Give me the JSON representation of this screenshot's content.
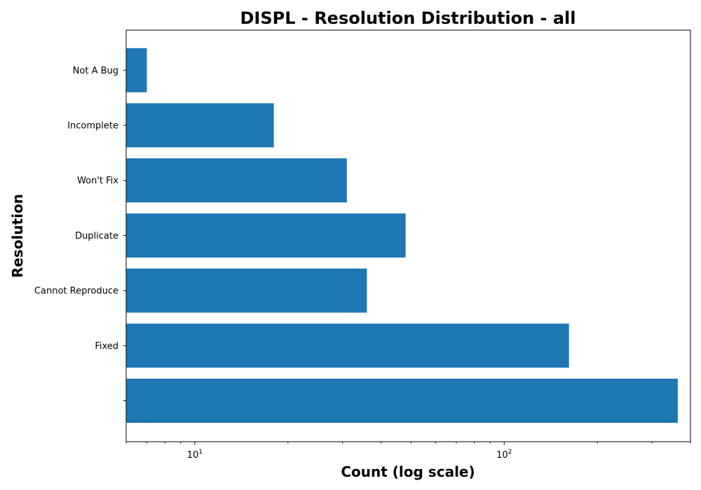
{
  "chart_data": {
    "type": "bar",
    "orientation": "horizontal",
    "title": "DISPL - Resolution Distribution - all",
    "xlabel": "Count (log scale)",
    "ylabel": "Resolution",
    "xscale": "log",
    "xlim": [
      6,
      400
    ],
    "categories": [
      "",
      "Fixed",
      "Cannot Reproduce",
      "Duplicate",
      "Won't Fix",
      "Incomplete",
      "Not A Bug"
    ],
    "values": [
      364,
      162,
      36,
      48,
      31,
      18,
      7
    ],
    "x_major_ticks": [
      {
        "base": "10",
        "exp": "1",
        "value": 10
      },
      {
        "base": "10",
        "exp": "2",
        "value": 100
      }
    ],
    "x_minor_ticks": [
      6,
      7,
      8,
      9,
      20,
      30,
      40,
      50,
      60,
      70,
      80,
      90,
      200,
      300,
      400
    ],
    "bar_color": "#1f77b4",
    "grid": false,
    "legend": "none"
  }
}
